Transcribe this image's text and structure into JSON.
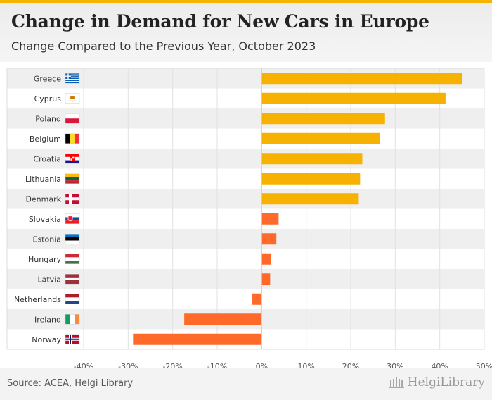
{
  "header": {
    "title": "Change in Demand for New Cars in Europe",
    "subtitle": "Change Compared to the Previous Year, October 2023"
  },
  "footer": {
    "source": "Source: ACEA, Helgi Library",
    "logo_text": "HelgiLibrary"
  },
  "colors": {
    "accent": "#f5b400",
    "high": "#f7b100",
    "low": "#ff6a2b"
  },
  "chart_data": {
    "type": "bar",
    "orientation": "horizontal",
    "categories": [
      "Greece",
      "Cyprus",
      "Poland",
      "Belgium",
      "Croatia",
      "Lithuania",
      "Denmark",
      "Slovakia",
      "Estonia",
      "Hungary",
      "Latvia",
      "Netherlands",
      "Ireland",
      "Norway"
    ],
    "values": [
      45.0,
      41.3,
      27.7,
      26.5,
      22.6,
      22.1,
      21.8,
      3.8,
      3.3,
      2.1,
      1.9,
      -2.1,
      -17.4,
      -28.9
    ],
    "value_unit": "%",
    "xlim": [
      -40,
      50
    ],
    "ticks": [
      "-40%",
      "-30%",
      "-20%",
      "-10%",
      "0%",
      "10%",
      "20%",
      "30%",
      "40%",
      "50%"
    ],
    "flags": [
      "greece-flag",
      "cyprus-flag",
      "poland-flag",
      "belgium-flag",
      "croatia-flag",
      "lithuania-flag",
      "denmark-flag",
      "slovakia-flag",
      "estonia-flag",
      "hungary-flag",
      "latvia-flag",
      "netherlands-flag",
      "ireland-flag",
      "norway-flag"
    ],
    "title": "Change in Demand for New Cars in Europe",
    "xlabel": "",
    "ylabel": "",
    "grid": true,
    "legend": "none"
  }
}
